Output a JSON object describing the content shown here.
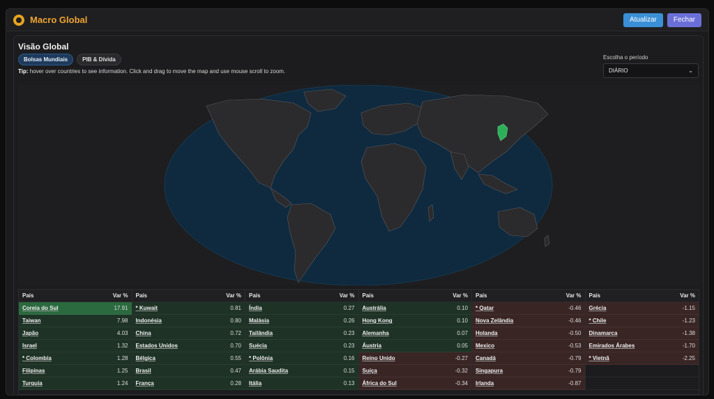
{
  "app": {
    "title": "Macro Global"
  },
  "toolbar": {
    "refresh_label": "Atualizar",
    "close_label": "Fechar"
  },
  "main": {
    "title": "Visão Global",
    "tabs": [
      {
        "label": "Bolsas Mundiais",
        "active": true
      },
      {
        "label": "PIB & Dívida",
        "active": false
      }
    ],
    "tip_bold": "Tip:",
    "tip_text": "hover over countries to see information. Click and drag to move the map and use mouse scroll to zoom.",
    "period": {
      "label": "Escolha o período",
      "selected": "DIÁRIO"
    }
  },
  "colors": {
    "ocean": "#0f2a3f",
    "land": "#2a2a2c",
    "highlight": "#2fae5a",
    "accent": "#f0a431"
  },
  "table": {
    "header_country": "País",
    "header_change": "Var %",
    "columns": [
      [
        {
          "country": "Coreia do Sul",
          "change": "17.91",
          "tone": "pos-strong"
        },
        {
          "country": "Taiwan",
          "change": "7.98",
          "tone": "pos"
        },
        {
          "country": "Japão",
          "change": "4.03",
          "tone": "pos"
        },
        {
          "country": "Israel",
          "change": "1.32",
          "tone": "pos"
        },
        {
          "country": "* Colombia",
          "change": "1.28",
          "tone": "pos"
        },
        {
          "country": "Filipinas",
          "change": "1.25",
          "tone": "pos"
        },
        {
          "country": "Turquia",
          "change": "1.24",
          "tone": "pos"
        }
      ],
      [
        {
          "country": "* Kuwait",
          "change": "0.81",
          "tone": "pos"
        },
        {
          "country": "Indonésia",
          "change": "0.80",
          "tone": "pos"
        },
        {
          "country": "China",
          "change": "0.72",
          "tone": "pos"
        },
        {
          "country": "Estados Unidos",
          "change": "0.70",
          "tone": "pos"
        },
        {
          "country": "Bélgica",
          "change": "0.55",
          "tone": "pos"
        },
        {
          "country": "Brasil",
          "change": "0.47",
          "tone": "pos"
        },
        {
          "country": "França",
          "change": "0.28",
          "tone": "pos"
        }
      ],
      [
        {
          "country": "Índia",
          "change": "0.27",
          "tone": "pos"
        },
        {
          "country": "Malásia",
          "change": "0.26",
          "tone": "pos"
        },
        {
          "country": "Tailândia",
          "change": "0.23",
          "tone": "pos"
        },
        {
          "country": "Suécia",
          "change": "0.23",
          "tone": "pos"
        },
        {
          "country": "* Polônia",
          "change": "0.16",
          "tone": "pos"
        },
        {
          "country": "Arábia Saudita",
          "change": "0.15",
          "tone": "pos"
        },
        {
          "country": "Itália",
          "change": "0.13",
          "tone": "pos"
        }
      ],
      [
        {
          "country": "Austrália",
          "change": "0.10",
          "tone": "pos"
        },
        {
          "country": "Hong Kong",
          "change": "0.10",
          "tone": "pos"
        },
        {
          "country": "Alemanha",
          "change": "0.07",
          "tone": "pos"
        },
        {
          "country": "Áustria",
          "change": "0.05",
          "tone": "pos"
        },
        {
          "country": "Reino Unido",
          "change": "-0.27",
          "tone": "neg"
        },
        {
          "country": "Suíça",
          "change": "-0.32",
          "tone": "neg"
        },
        {
          "country": "África do Sul",
          "change": "-0.34",
          "tone": "neg"
        }
      ],
      [
        {
          "country": "* Qatar",
          "change": "-0.46",
          "tone": "neg"
        },
        {
          "country": "Nova Zelândia",
          "change": "-0.46",
          "tone": "neg"
        },
        {
          "country": "Holanda",
          "change": "-0.50",
          "tone": "neg"
        },
        {
          "country": "Mexico",
          "change": "-0.53",
          "tone": "neg"
        },
        {
          "country": "Canadá",
          "change": "-0.79",
          "tone": "neg"
        },
        {
          "country": "Singapura",
          "change": "-0.79",
          "tone": "neg"
        },
        {
          "country": "Irlanda",
          "change": "-0.87",
          "tone": "neg"
        }
      ],
      [
        {
          "country": "Grécia",
          "change": "-1.15",
          "tone": "neg"
        },
        {
          "country": "* Chile",
          "change": "-1.23",
          "tone": "neg"
        },
        {
          "country": "Dinamarca",
          "change": "-1.38",
          "tone": "neg"
        },
        {
          "country": "Emirados Árabes",
          "change": "-1.70",
          "tone": "neg"
        },
        {
          "country": "* Vietnã",
          "change": "-2.25",
          "tone": "neg"
        },
        {
          "country": "",
          "change": "",
          "tone": "empty"
        },
        {
          "country": "",
          "change": "",
          "tone": "empty"
        }
      ]
    ]
  }
}
